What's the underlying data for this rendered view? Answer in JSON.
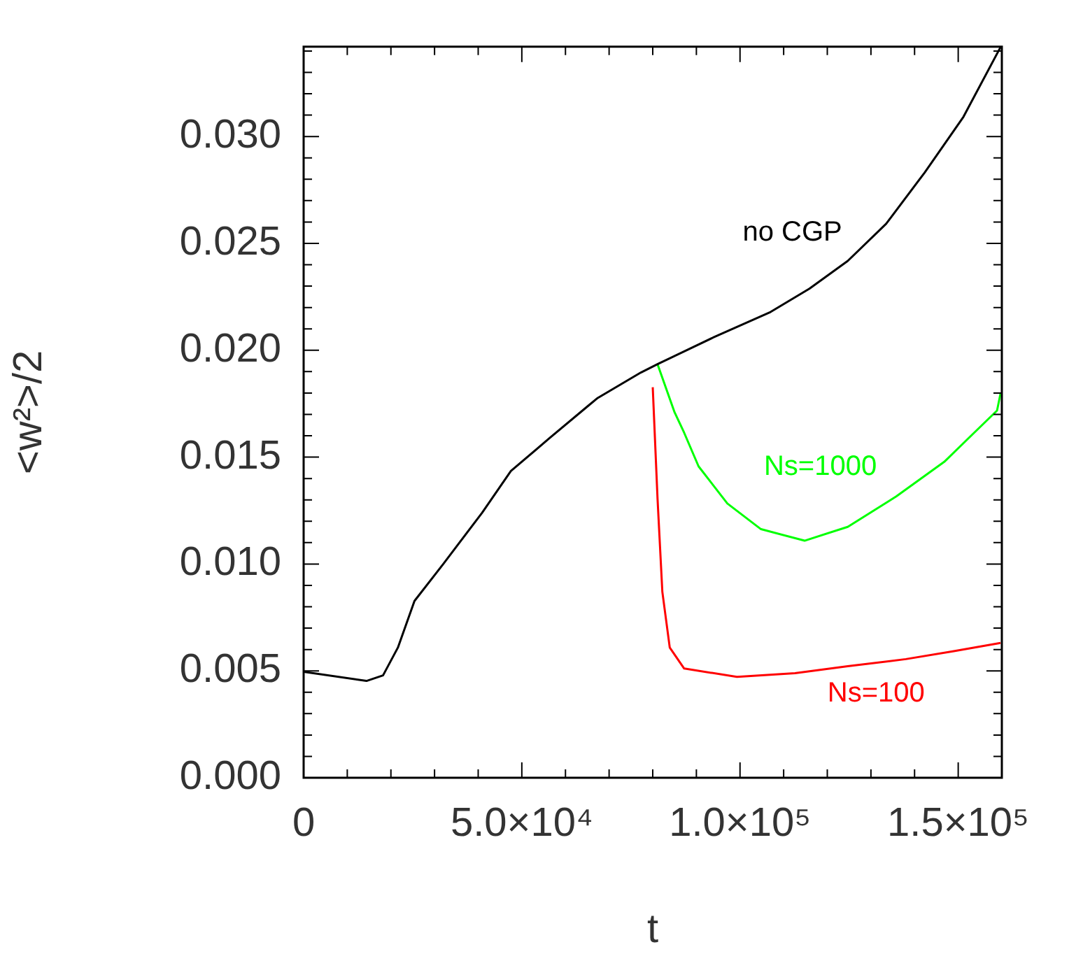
{
  "chart_data": {
    "type": "line",
    "xlabel": "t",
    "ylabel": "<w²>/2",
    "xlim": [
      0,
      160000
    ],
    "ylim": [
      0,
      0.0342
    ],
    "xticks": [
      0,
      {
        "value": 10000,
        "label": null
      },
      {
        "value": 20000,
        "label": null
      },
      {
        "value": 30000,
        "label": null
      },
      {
        "value": 40000,
        "label": null
      },
      {
        "value": 50000,
        "label": "5.0×10⁴"
      },
      {
        "value": 60000,
        "label": null
      },
      {
        "value": 70000,
        "label": null
      },
      {
        "value": 80000,
        "label": null
      },
      {
        "value": 90000,
        "label": null
      },
      {
        "value": 100000,
        "label": "1.0×10⁵"
      },
      {
        "value": 110000,
        "label": null
      },
      {
        "value": 120000,
        "label": null
      },
      {
        "value": 130000,
        "label": null
      },
      {
        "value": 140000,
        "label": null
      },
      {
        "value": 150000,
        "label": "1.5×10⁵"
      }
    ],
    "yticks": [
      {
        "value": 0,
        "label": "0.000"
      },
      {
        "value": 0.001,
        "label": null
      },
      {
        "value": 0.002,
        "label": null
      },
      {
        "value": 0.003,
        "label": null
      },
      {
        "value": 0.004,
        "label": null
      },
      {
        "value": 0.005,
        "label": "0.005"
      },
      {
        "value": 0.006,
        "label": null
      },
      {
        "value": 0.007,
        "label": null
      },
      {
        "value": 0.008,
        "label": null
      },
      {
        "value": 0.009,
        "label": null
      },
      {
        "value": 0.01,
        "label": "0.010"
      },
      {
        "value": 0.011,
        "label": null
      },
      {
        "value": 0.012,
        "label": null
      },
      {
        "value": 0.013,
        "label": null
      },
      {
        "value": 0.014,
        "label": null
      },
      {
        "value": 0.015,
        "label": "0.015"
      },
      {
        "value": 0.016,
        "label": null
      },
      {
        "value": 0.017,
        "label": null
      },
      {
        "value": 0.018,
        "label": null
      },
      {
        "value": 0.019,
        "label": null
      },
      {
        "value": 0.02,
        "label": "0.020"
      },
      {
        "value": 0.021,
        "label": null
      },
      {
        "value": 0.022,
        "label": null
      },
      {
        "value": 0.023,
        "label": null
      },
      {
        "value": 0.024,
        "label": null
      },
      {
        "value": 0.025,
        "label": "0.025"
      },
      {
        "value": 0.026,
        "label": null
      },
      {
        "value": 0.027,
        "label": null
      },
      {
        "value": 0.028,
        "label": null
      },
      {
        "value": 0.029,
        "label": null
      },
      {
        "value": 0.03,
        "label": "0.030"
      },
      {
        "value": 0.031,
        "label": null
      },
      {
        "value": 0.032,
        "label": null
      },
      {
        "value": 0.033,
        "label": null
      },
      {
        "value": 0.034,
        "label": null
      }
    ],
    "grid": false,
    "legend": false,
    "marker": "none",
    "line_style": "solid",
    "series": [
      {
        "name": "no CGP",
        "color": "#000000",
        "x": [
          0,
          14400,
          18200,
          21600,
          25400,
          32000,
          40900,
          47500,
          56300,
          65200,
          67400,
          77300,
          81100,
          93800,
          107000,
          115900,
          124700,
          133500,
          142300,
          151200,
          159700
        ],
        "values": [
          0.00496,
          0.00453,
          0.00479,
          0.00609,
          0.00827,
          0.01,
          0.0124,
          0.01435,
          0.01588,
          0.0174,
          0.01777,
          0.01896,
          0.01935,
          0.02059,
          0.02179,
          0.02288,
          0.02418,
          0.02592,
          0.02831,
          0.03092,
          0.03418
        ]
      },
      {
        "name": "Ns=1000",
        "color": "#00ff00",
        "x": [
          81100,
          85000,
          87200,
          90500,
          97100,
          104800,
          114800,
          124700,
          135800,
          146800,
          153400,
          158900,
          159700
        ],
        "values": [
          0.01935,
          0.0171,
          0.01614,
          0.01457,
          0.01283,
          0.01163,
          0.01109,
          0.01174,
          0.01316,
          0.01478,
          0.01609,
          0.01718,
          0.01798
        ]
      },
      {
        "name": "Ns=100",
        "color": "#ff0000",
        "x": [
          80000,
          81100,
          82200,
          83900,
          87200,
          99300,
          112600,
          124700,
          138000,
          149000,
          159700
        ],
        "values": [
          0.01827,
          0.01305,
          0.0087,
          0.00609,
          0.00511,
          0.00472,
          0.00489,
          0.00522,
          0.00555,
          0.00592,
          0.00631
        ]
      }
    ]
  }
}
